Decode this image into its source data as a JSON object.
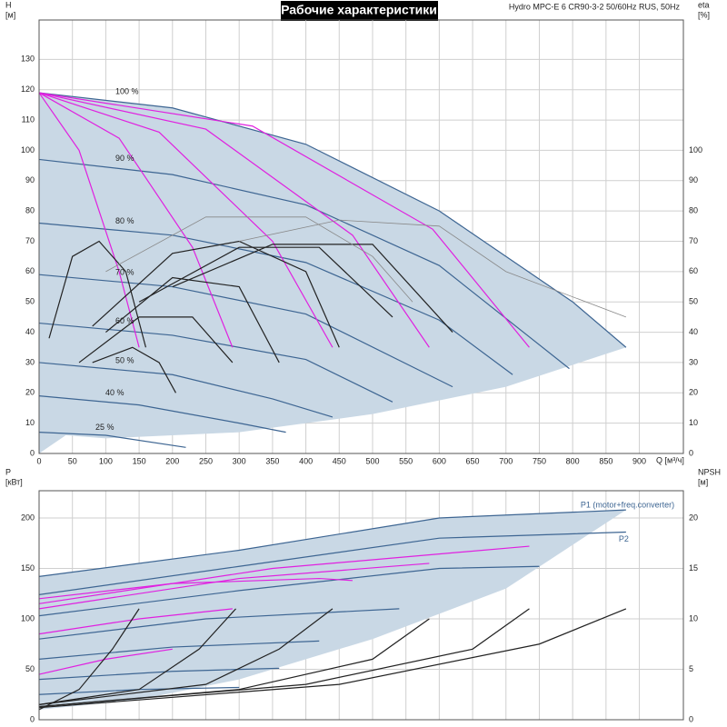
{
  "chart_data": [
    {
      "type": "line",
      "title": "Рабочие характеристики",
      "subtitle": "Hydro MPC-E 6 CR90-3-2 50/60Hz RUS, 50Hz",
      "y_label": "H",
      "y_unit": "[м]",
      "y2_label": "eta",
      "y2_unit": "[%]",
      "x_label": "Q [м³/ч]",
      "xlim": [
        0,
        966
      ],
      "ylim": [
        0,
        143
      ],
      "y2lim": [
        0,
        143
      ],
      "xticks": [
        0,
        50,
        100,
        150,
        200,
        250,
        300,
        350,
        400,
        450,
        500,
        550,
        600,
        650,
        700,
        750,
        800,
        850,
        900
      ],
      "yticks": [
        0,
        10,
        20,
        30,
        40,
        50,
        60,
        70,
        80,
        90,
        100,
        110,
        120,
        130
      ],
      "y2ticks": [
        0,
        10,
        20,
        30,
        40,
        50,
        60,
        70,
        80,
        90,
        100
      ],
      "grid": true,
      "series": [
        {
          "fill": "#c9d8e5",
          "color": "#c9d8e5",
          "x": [
            0,
            200,
            400,
            600,
            800,
            880,
            700,
            500,
            300,
            100,
            40,
            0
          ],
          "values": [
            119,
            114,
            102,
            80,
            50,
            35,
            22,
            13,
            7,
            5,
            6,
            0
          ]
        },
        {
          "name": "100 %",
          "color": "#3d6592",
          "x": [
            0,
            200,
            400,
            600,
            800,
            880
          ],
          "values": [
            119,
            114,
            102,
            80,
            50,
            35
          ]
        },
        {
          "name": "90 %",
          "color": "#3d6592",
          "x": [
            0,
            200,
            400,
            600,
            795
          ],
          "values": [
            97,
            92,
            82,
            62,
            28
          ]
        },
        {
          "name": "80 %",
          "color": "#3d6592",
          "x": [
            0,
            200,
            400,
            600,
            710
          ],
          "values": [
            76,
            72,
            63,
            44,
            26
          ]
        },
        {
          "name": "70 %",
          "color": "#3d6592",
          "x": [
            0,
            200,
            400,
            620
          ],
          "values": [
            59,
            55,
            46,
            22
          ]
        },
        {
          "name": "60 %",
          "color": "#3d6592",
          "x": [
            0,
            200,
            400,
            530
          ],
          "values": [
            43,
            39,
            31,
            17
          ]
        },
        {
          "name": "50 %",
          "color": "#3d6592",
          "x": [
            0,
            200,
            350,
            440
          ],
          "values": [
            30,
            26,
            18,
            12
          ]
        },
        {
          "name": "40 %",
          "color": "#3d6592",
          "x": [
            0,
            150,
            300,
            370
          ],
          "values": [
            19,
            16,
            10,
            7
          ]
        },
        {
          "name": "25 %",
          "color": "#3d6592",
          "x": [
            0,
            100,
            220
          ],
          "values": [
            7,
            6,
            2
          ]
        },
        {
          "color": "#e020e0",
          "x": [
            0,
            60,
            120,
            150
          ],
          "values": [
            119,
            100,
            60,
            35
          ]
        },
        {
          "color": "#e020e0",
          "x": [
            0,
            120,
            230,
            290
          ],
          "values": [
            119,
            104,
            68,
            35
          ]
        },
        {
          "color": "#e020e0",
          "x": [
            0,
            180,
            350,
            440
          ],
          "values": [
            119,
            106,
            70,
            35
          ]
        },
        {
          "color": "#e020e0",
          "x": [
            0,
            250,
            470,
            585
          ],
          "values": [
            119,
            107,
            72,
            35
          ]
        },
        {
          "color": "#e020e0",
          "x": [
            0,
            320,
            590,
            735
          ],
          "values": [
            119,
            108,
            74,
            35
          ]
        },
        {
          "color": "#222222",
          "x": [
            15,
            50,
            90,
            130,
            160
          ],
          "values": [
            38,
            65,
            70,
            60,
            35
          ]
        },
        {
          "color": "#222222",
          "x": [
            80,
            140,
            180,
            205
          ],
          "values": [
            30,
            35,
            30,
            20
          ]
        },
        {
          "color": "#222222",
          "x": [
            60,
            150,
            230,
            290
          ],
          "values": [
            30,
            45,
            45,
            30
          ]
        },
        {
          "color": "#222222",
          "x": [
            100,
            200,
            300,
            360
          ],
          "values": [
            40,
            58,
            55,
            30
          ]
        },
        {
          "color": "#222222",
          "x": [
            80,
            200,
            300,
            400,
            450
          ],
          "values": [
            42,
            66,
            70,
            60,
            35
          ]
        },
        {
          "color": "#222222",
          "x": [
            150,
            300,
            420,
            530
          ],
          "values": [
            50,
            68,
            68,
            45
          ]
        },
        {
          "color": "#222222",
          "x": [
            200,
            350,
            500,
            620
          ],
          "values": [
            55,
            69,
            69,
            40
          ]
        },
        {
          "color": "#888888",
          "x": [
            100,
            250,
            400,
            500,
            560
          ],
          "values": [
            60,
            78,
            78,
            65,
            50
          ]
        },
        {
          "color": "#888888",
          "x": [
            300,
            450,
            600,
            700,
            880
          ],
          "values": [
            70,
            77,
            75,
            60,
            45
          ]
        }
      ]
    },
    {
      "type": "line",
      "y_label": "P",
      "y_unit": "[кВт]",
      "y2_label": "NPSH",
      "y2_unit": "[м]",
      "xlim": [
        0,
        966
      ],
      "ylim": [
        0,
        227
      ],
      "y2lim": [
        0,
        22.7
      ],
      "xticks": [
        0,
        50,
        100,
        150,
        200,
        250,
        300,
        350,
        400,
        450,
        500,
        550,
        600,
        650,
        700,
        750,
        800,
        850,
        900
      ],
      "yticks": [
        0,
        50,
        100,
        150,
        200
      ],
      "y2ticks": [
        0,
        5,
        10,
        15,
        20
      ],
      "grid": true,
      "series": [
        {
          "fill": "#c9d8e5",
          "color": "#c9d8e5",
          "x": [
            0,
            300,
            600,
            880,
            700,
            500,
            300,
            150,
            0
          ],
          "values": [
            142,
            168,
            200,
            208,
            130,
            80,
            40,
            20,
            10
          ]
        },
        {
          "name": "P1 (motor+freq.converter)",
          "color": "#3d6592",
          "x": [
            0,
            300,
            600,
            880
          ],
          "values": [
            142,
            168,
            200,
            208
          ]
        },
        {
          "name": "P2",
          "color": "#3d6592",
          "x": [
            0,
            300,
            600,
            880
          ],
          "values": [
            124,
            152,
            180,
            186
          ]
        },
        {
          "color": "#3d6592",
          "x": [
            0,
            300,
            600,
            750
          ],
          "values": [
            103,
            128,
            150,
            152
          ]
        },
        {
          "color": "#3d6592",
          "x": [
            0,
            250,
            540
          ],
          "values": [
            80,
            100,
            110
          ]
        },
        {
          "color": "#3d6592",
          "x": [
            0,
            200,
            420
          ],
          "values": [
            60,
            72,
            78
          ]
        },
        {
          "color": "#3d6592",
          "x": [
            0,
            200,
            360
          ],
          "values": [
            40,
            48,
            51
          ]
        },
        {
          "color": "#3d6592",
          "x": [
            0,
            150,
            300
          ],
          "values": [
            25,
            30,
            32
          ]
        },
        {
          "color": "#e020e0",
          "x": [
            0,
            200,
            420,
            470
          ],
          "values": [
            120,
            135,
            140,
            138
          ]
        },
        {
          "color": "#e020e0",
          "x": [
            0,
            300,
            585
          ],
          "values": [
            110,
            140,
            155
          ]
        },
        {
          "color": "#e020e0",
          "x": [
            0,
            350,
            735
          ],
          "values": [
            115,
            150,
            172
          ]
        },
        {
          "color": "#e020e0",
          "x": [
            0,
            150,
            290
          ],
          "values": [
            85,
            100,
            110
          ]
        },
        {
          "color": "#e020e0",
          "x": [
            0,
            100,
            200
          ],
          "values": [
            45,
            60,
            70
          ]
        },
        {
          "axis": "y2",
          "color": "#222222",
          "x": [
            0,
            60,
            110,
            150
          ],
          "values": [
            1,
            3,
            7,
            11
          ]
        },
        {
          "axis": "y2",
          "color": "#222222",
          "x": [
            0,
            150,
            240,
            295
          ],
          "values": [
            1.5,
            3,
            7,
            11
          ]
        },
        {
          "axis": "y2",
          "color": "#222222",
          "x": [
            0,
            250,
            360,
            440
          ],
          "values": [
            1.5,
            3.5,
            7,
            11
          ]
        },
        {
          "axis": "y2",
          "color": "#222222",
          "x": [
            0,
            300,
            500,
            585
          ],
          "values": [
            1.3,
            3,
            6,
            10
          ]
        },
        {
          "axis": "y2",
          "color": "#222222",
          "x": [
            0,
            400,
            650,
            735
          ],
          "values": [
            1.3,
            3.5,
            7,
            11
          ]
        },
        {
          "axis": "y2",
          "color": "#222222",
          "x": [
            0,
            450,
            750,
            880
          ],
          "values": [
            1.2,
            3.5,
            7.5,
            11
          ]
        }
      ]
    }
  ]
}
